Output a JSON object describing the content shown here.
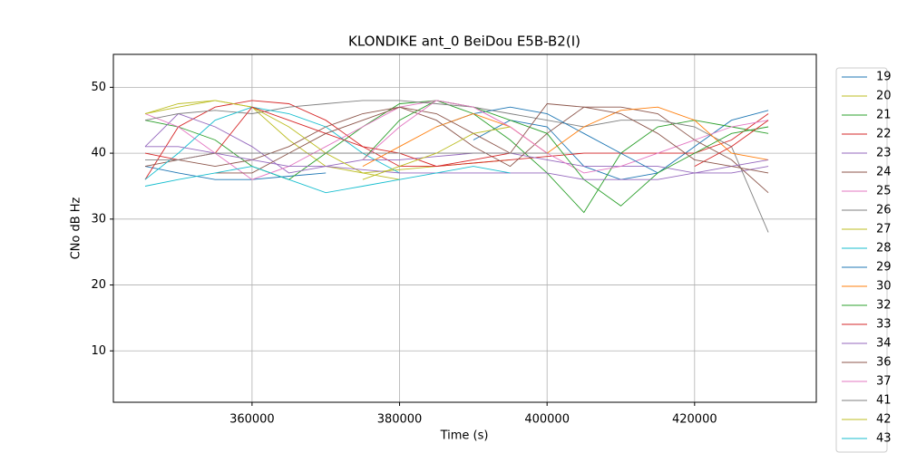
{
  "chart_data": {
    "type": "line",
    "title": "KLONDIKE ant_0 BeiDou E5B-B2(I)",
    "x_label": "Time (s)",
    "y_label": "CNo dB Hz",
    "x": [
      345500,
      350000,
      355000,
      360000,
      365000,
      370000,
      375000,
      380000,
      385000,
      390000,
      395000,
      400000,
      405000,
      410000,
      415000,
      420000,
      425000,
      430000
    ],
    "xlim": [
      341200,
      436500
    ],
    "xticks": [
      360000,
      380000,
      400000,
      420000
    ],
    "ylim": [
      2.2,
      55
    ],
    "yticks": [
      10,
      20,
      30,
      40,
      50
    ],
    "grid": true,
    "legend": "outside-right",
    "series": [
      {
        "name": "19",
        "color": "#1f77b4",
        "values": [
          38,
          37,
          36,
          36,
          36.5,
          37,
          null,
          null,
          null,
          42,
          45,
          44,
          38,
          36,
          37,
          41,
          45,
          46.5
        ]
      },
      {
        "name": "20",
        "color": "#bcbd22",
        "values": [
          46,
          47.5,
          48,
          47,
          42,
          38,
          37,
          37.5,
          38,
          38.5,
          39,
          null,
          null,
          null,
          null,
          null,
          null,
          null
        ]
      },
      {
        "name": "21",
        "color": "#2ca02c",
        "values": [
          45,
          44,
          42,
          38,
          36,
          40,
          44,
          47.5,
          48,
          46,
          42,
          37,
          31,
          40,
          44,
          45,
          44,
          43
        ]
      },
      {
        "name": "22",
        "color": "#d62728",
        "values": [
          36,
          44,
          47,
          48,
          47.5,
          45,
          41,
          38,
          38,
          38.5,
          39,
          39.5,
          40,
          40,
          40,
          40,
          42,
          46
        ]
      },
      {
        "name": "23",
        "color": "#9467bd",
        "values": [
          41,
          46,
          44,
          41,
          37,
          38,
          39,
          39,
          39.5,
          40,
          40,
          39,
          38,
          38,
          38,
          37,
          37,
          38
        ]
      },
      {
        "name": "24",
        "color": "#8c564b",
        "values": [
          38,
          39,
          38,
          39,
          41,
          44,
          46,
          47,
          45,
          41,
          38,
          43,
          47,
          47,
          46,
          42,
          39,
          34
        ]
      },
      {
        "name": "25",
        "color": "#e377c2",
        "values": [
          46,
          44,
          40,
          36,
          38,
          41,
          44,
          47,
          48,
          47,
          44,
          40,
          37,
          38,
          40,
          42,
          44,
          45
        ]
      },
      {
        "name": "26",
        "color": "#7f7f7f",
        "values": [
          45,
          46,
          46.5,
          46,
          47,
          47.5,
          48,
          48,
          47.5,
          47,
          46,
          45,
          44,
          45,
          45,
          44,
          41,
          28
        ]
      },
      {
        "name": "27",
        "color": "#bcbd22",
        "values": [
          46,
          47,
          48,
          47,
          44,
          40,
          37,
          36,
          null,
          null,
          null,
          null,
          null,
          null,
          null,
          null,
          null,
          null
        ]
      },
      {
        "name": "28",
        "color": "#17becf",
        "values": [
          36,
          40,
          45,
          47,
          46,
          44,
          40,
          37,
          null,
          null,
          null,
          null,
          null,
          null,
          null,
          null,
          null,
          null
        ]
      },
      {
        "name": "29",
        "color": "#1f77b4",
        "values": [
          39,
          null,
          null,
          null,
          null,
          null,
          null,
          null,
          44,
          46,
          47,
          46,
          43,
          40,
          37,
          null,
          null,
          null
        ]
      },
      {
        "name": "30",
        "color": "#ff7f0e",
        "values": [
          null,
          null,
          null,
          null,
          null,
          null,
          38,
          41,
          44,
          46,
          44,
          40,
          44,
          46.5,
          47,
          45,
          40,
          39
        ]
      },
      {
        "name": "32",
        "color": "#2ca02c",
        "values": [
          null,
          null,
          null,
          null,
          null,
          null,
          39,
          45,
          48,
          47,
          45,
          43,
          36,
          32,
          37,
          40,
          43,
          44
        ]
      },
      {
        "name": "33",
        "color": "#d62728",
        "values": [
          40,
          39,
          40,
          47,
          45,
          43,
          41,
          40,
          38,
          39,
          40,
          null,
          null,
          null,
          null,
          38,
          41,
          45
        ]
      },
      {
        "name": "34",
        "color": "#9467bd",
        "values": [
          41,
          41,
          40,
          39,
          38,
          38,
          37.5,
          37,
          37,
          37,
          37,
          37,
          36,
          36,
          36,
          37,
          38,
          39
        ]
      },
      {
        "name": "36",
        "color": "#8c564b",
        "values": [
          null,
          null,
          37,
          37,
          40,
          43,
          45,
          47,
          46,
          43,
          40,
          47.5,
          47,
          46,
          43,
          39,
          38,
          37
        ]
      },
      {
        "name": "37",
        "color": "#e377c2",
        "values": [
          null,
          null,
          null,
          null,
          null,
          null,
          39,
          44,
          48,
          47,
          44,
          40,
          null,
          null,
          null,
          null,
          null,
          null
        ]
      },
      {
        "name": "41",
        "color": "#7f7f7f",
        "values": [
          39,
          39,
          40,
          40,
          40,
          40,
          40,
          40,
          40,
          40,
          40,
          40,
          null,
          null,
          null,
          null,
          null,
          null
        ]
      },
      {
        "name": "42",
        "color": "#bcbd22",
        "values": [
          null,
          null,
          null,
          null,
          null,
          null,
          36,
          38,
          40,
          43,
          44,
          null,
          null,
          null,
          null,
          null,
          null,
          null
        ]
      },
      {
        "name": "43",
        "color": "#17becf",
        "values": [
          35,
          36,
          37,
          38,
          36,
          34,
          35,
          36,
          37,
          38,
          37,
          null,
          null,
          null,
          null,
          null,
          null,
          null
        ]
      }
    ]
  }
}
